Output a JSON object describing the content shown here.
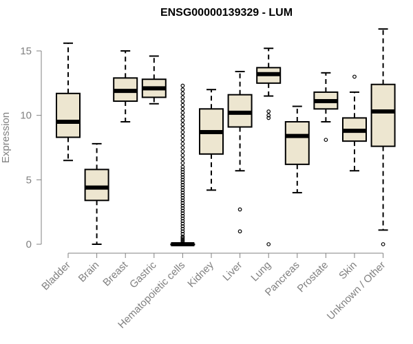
{
  "chart_data": {
    "type": "boxplot",
    "title": "ENSG00000139329 - LUM",
    "xlabel": "",
    "ylabel": "Expression",
    "ylim": [
      0,
      17
    ],
    "yticks": [
      0,
      5,
      10,
      15
    ],
    "colors": {
      "box_fill": "#ede6d0",
      "stroke": "#000000",
      "axis": "#808080",
      "label": "#808080"
    },
    "categories": [
      "Bladder",
      "Brain",
      "Breast",
      "Gastric",
      "Hematopoietic cells",
      "Kidney",
      "Liver",
      "Lung",
      "Pancreas",
      "Prostate",
      "Skin",
      "Unknown / Other"
    ],
    "boxes": [
      {
        "name": "Bladder",
        "min": 6.5,
        "q1": 8.3,
        "median": 9.5,
        "q3": 11.7,
        "max": 15.6,
        "outliers": []
      },
      {
        "name": "Brain",
        "min": 0.0,
        "q1": 3.4,
        "median": 4.4,
        "q3": 5.8,
        "max": 7.8,
        "outliers": []
      },
      {
        "name": "Breast",
        "min": 9.5,
        "q1": 11.1,
        "median": 11.9,
        "q3": 12.9,
        "max": 15.0,
        "outliers": []
      },
      {
        "name": "Gastric",
        "min": 10.9,
        "q1": 11.4,
        "median": 12.1,
        "q3": 12.8,
        "max": 14.6,
        "outliers": []
      },
      {
        "name": "Hematopoietic cells",
        "min": 0.0,
        "q1": 0.0,
        "median": 0.0,
        "q3": 0.0,
        "max": 0.0,
        "outliers": [
          0.1,
          0.2,
          0.3,
          0.4,
          0.5,
          0.6,
          0.8,
          1.0,
          1.2,
          1.4,
          1.6,
          1.8,
          2.0,
          2.2,
          2.4,
          2.6,
          2.8,
          3.0,
          3.2,
          3.4,
          3.6,
          3.8,
          4.0,
          4.2,
          4.4,
          4.6,
          4.8,
          5.0,
          5.2,
          5.4,
          5.6,
          5.8,
          6.0,
          6.3,
          6.6,
          6.9,
          7.2,
          7.5,
          7.8,
          8.1,
          8.4,
          8.7,
          9.0,
          9.3,
          9.6,
          9.9,
          10.2,
          10.5,
          10.8,
          11.1,
          11.4,
          11.7,
          12.0,
          12.3
        ]
      },
      {
        "name": "Kidney",
        "min": 4.2,
        "q1": 7.0,
        "median": 8.7,
        "q3": 10.5,
        "max": 12.0,
        "outliers": []
      },
      {
        "name": "Liver",
        "min": 5.7,
        "q1": 9.1,
        "median": 10.2,
        "q3": 11.6,
        "max": 13.4,
        "outliers": [
          1.0,
          2.7
        ]
      },
      {
        "name": "Lung",
        "min": 11.5,
        "q1": 12.5,
        "median": 13.2,
        "q3": 13.7,
        "max": 15.2,
        "outliers": [
          0.0,
          9.8,
          10.0,
          10.3
        ]
      },
      {
        "name": "Pancreas",
        "min": 4.0,
        "q1": 6.2,
        "median": 8.4,
        "q3": 9.5,
        "max": 10.7,
        "outliers": []
      },
      {
        "name": "Prostate",
        "min": 9.5,
        "q1": 10.5,
        "median": 11.1,
        "q3": 11.8,
        "max": 13.3,
        "outliers": [
          8.1
        ]
      },
      {
        "name": "Skin",
        "min": 5.7,
        "q1": 8.0,
        "median": 8.8,
        "q3": 9.8,
        "max": 11.8,
        "outliers": [
          13.0
        ]
      },
      {
        "name": "Unknown / Other",
        "min": 1.1,
        "q1": 7.6,
        "median": 10.3,
        "q3": 12.4,
        "max": 16.7,
        "outliers": [
          0.0
        ]
      }
    ]
  }
}
